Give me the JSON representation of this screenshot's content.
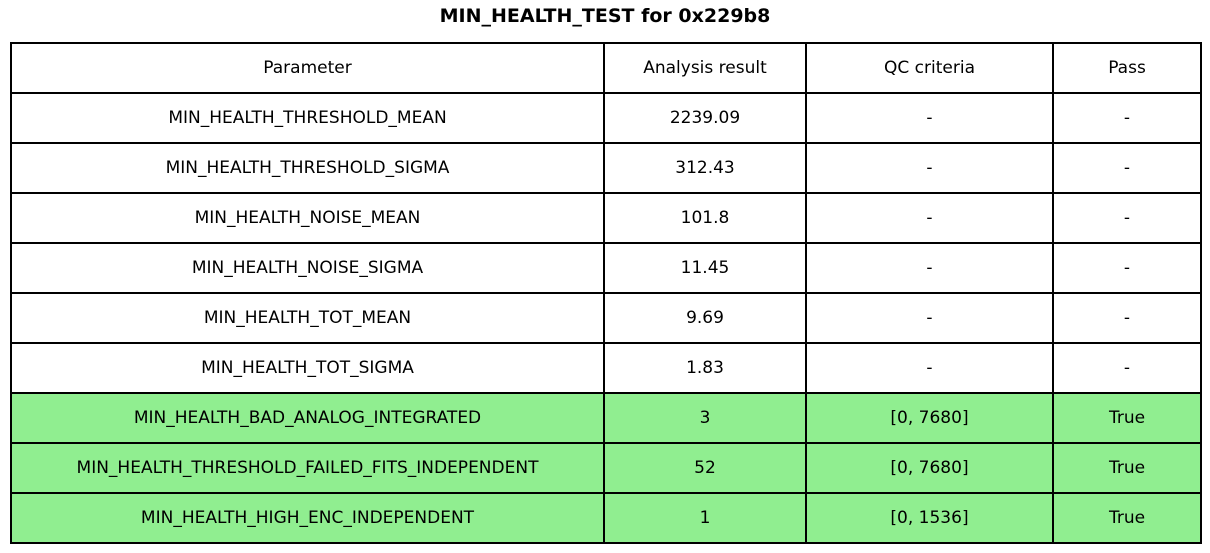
{
  "title": "MIN_HEALTH_TEST for 0x229b8",
  "colors": {
    "pass_row_background": "#90ee90",
    "row_background": "#ffffff",
    "border": "#000000",
    "text": "#000000"
  },
  "table": {
    "headers": [
      "Parameter",
      "Analysis result",
      "QC criteria",
      "Pass"
    ],
    "rows": [
      {
        "parameter": "MIN_HEALTH_THRESHOLD_MEAN",
        "analysis_result": "2239.09",
        "qc_criteria": "-",
        "pass": "-",
        "highlighted": false
      },
      {
        "parameter": "MIN_HEALTH_THRESHOLD_SIGMA",
        "analysis_result": "312.43",
        "qc_criteria": "-",
        "pass": "-",
        "highlighted": false
      },
      {
        "parameter": "MIN_HEALTH_NOISE_MEAN",
        "analysis_result": "101.8",
        "qc_criteria": "-",
        "pass": "-",
        "highlighted": false
      },
      {
        "parameter": "MIN_HEALTH_NOISE_SIGMA",
        "analysis_result": "11.45",
        "qc_criteria": "-",
        "pass": "-",
        "highlighted": false
      },
      {
        "parameter": "MIN_HEALTH_TOT_MEAN",
        "analysis_result": "9.69",
        "qc_criteria": "-",
        "pass": "-",
        "highlighted": false
      },
      {
        "parameter": "MIN_HEALTH_TOT_SIGMA",
        "analysis_result": "1.83",
        "qc_criteria": "-",
        "pass": "-",
        "highlighted": false
      },
      {
        "parameter": "MIN_HEALTH_BAD_ANALOG_INTEGRATED",
        "analysis_result": "3",
        "qc_criteria": "[0, 7680]",
        "pass": "True",
        "highlighted": true
      },
      {
        "parameter": "MIN_HEALTH_THRESHOLD_FAILED_FITS_INDEPENDENT",
        "analysis_result": "52",
        "qc_criteria": "[0, 7680]",
        "pass": "True",
        "highlighted": true
      },
      {
        "parameter": "MIN_HEALTH_HIGH_ENC_INDEPENDENT",
        "analysis_result": "1",
        "qc_criteria": "[0, 1536]",
        "pass": "True",
        "highlighted": true
      }
    ]
  },
  "chart_data": {
    "type": "table",
    "title": "MIN_HEALTH_TEST for 0x229b8",
    "columns": [
      "Parameter",
      "Analysis result",
      "QC criteria",
      "Pass"
    ],
    "rows": [
      [
        "MIN_HEALTH_THRESHOLD_MEAN",
        2239.09,
        "-",
        "-"
      ],
      [
        "MIN_HEALTH_THRESHOLD_SIGMA",
        312.43,
        "-",
        "-"
      ],
      [
        "MIN_HEALTH_NOISE_MEAN",
        101.8,
        "-",
        "-"
      ],
      [
        "MIN_HEALTH_NOISE_SIGMA",
        11.45,
        "-",
        "-"
      ],
      [
        "MIN_HEALTH_TOT_MEAN",
        9.69,
        "-",
        "-"
      ],
      [
        "MIN_HEALTH_TOT_SIGMA",
        1.83,
        "-",
        "-"
      ],
      [
        "MIN_HEALTH_BAD_ANALOG_INTEGRATED",
        3,
        "[0, 7680]",
        "True"
      ],
      [
        "MIN_HEALTH_THRESHOLD_FAILED_FITS_INDEPENDENT",
        52,
        "[0, 7680]",
        "True"
      ],
      [
        "MIN_HEALTH_HIGH_ENC_INDEPENDENT",
        1,
        "[0, 1536]",
        "True"
      ]
    ],
    "highlighted_rows": [
      6,
      7,
      8
    ],
    "highlight_color": "#90ee90",
    "legend_position": "none",
    "grid": true
  }
}
